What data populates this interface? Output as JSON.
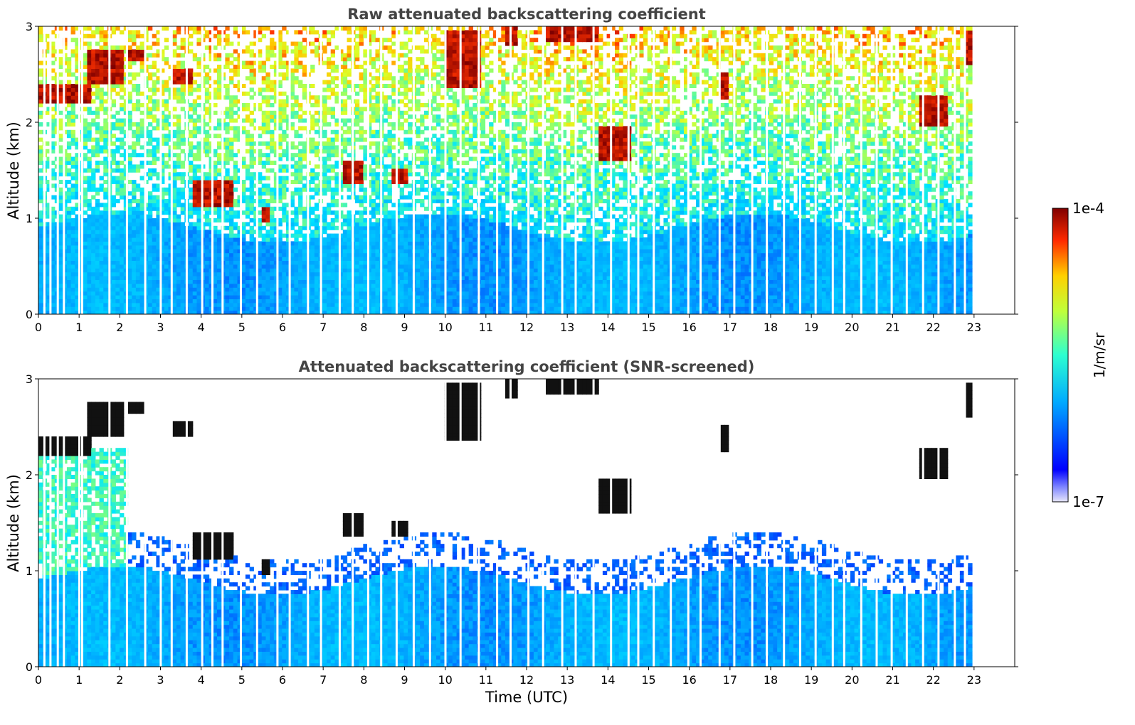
{
  "figure": {
    "xlabel": "Time (UTC)",
    "colorbar": {
      "label": "1/m/sr",
      "max_label": "1e-4",
      "min_label": "1e-7",
      "range": [
        1e-07,
        0.0001
      ],
      "scale": "log",
      "colormap": "jet"
    }
  },
  "chart_data": [
    {
      "type": "heatmap",
      "title": "Raw attenuated backscattering coefficient",
      "xlabel": "",
      "ylabel": "Altitude (km)",
      "xlim": [
        0,
        24
      ],
      "ylim": [
        0,
        3
      ],
      "x_ticks": [
        "0",
        "1",
        "2",
        "3",
        "4",
        "5",
        "6",
        "7",
        "8",
        "9",
        "10",
        "11",
        "12",
        "13",
        "14",
        "15",
        "16",
        "17",
        "18",
        "19",
        "20",
        "21",
        "22",
        "23"
      ],
      "y_ticks": [
        "0",
        "1",
        "2",
        "3"
      ],
      "data_end_hour": 22.95,
      "boundary_layer_top_km": 0.9,
      "cloud_layers": [
        {
          "start": 0.0,
          "end": 1.3,
          "alt_low": 2.2,
          "alt_high": 2.4
        },
        {
          "start": 1.2,
          "end": 2.1,
          "alt_low": 2.4,
          "alt_high": 2.75
        },
        {
          "start": 2.2,
          "end": 2.6,
          "alt_low": 2.65,
          "alt_high": 2.75
        },
        {
          "start": 3.3,
          "end": 3.8,
          "alt_low": 2.4,
          "alt_high": 2.55
        },
        {
          "start": 3.8,
          "end": 4.8,
          "alt_low": 1.1,
          "alt_high": 1.4
        },
        {
          "start": 5.5,
          "end": 5.7,
          "alt_low": 0.95,
          "alt_high": 1.1
        },
        {
          "start": 7.5,
          "end": 8.0,
          "alt_low": 1.35,
          "alt_high": 1.6
        },
        {
          "start": 8.7,
          "end": 9.1,
          "alt_low": 1.35,
          "alt_high": 1.5
        },
        {
          "start": 10.0,
          "end": 10.9,
          "alt_low": 2.35,
          "alt_high": 2.95
        },
        {
          "start": 11.5,
          "end": 11.8,
          "alt_low": 2.8,
          "alt_high": 3.0
        },
        {
          "start": 12.5,
          "end": 13.8,
          "alt_low": 2.85,
          "alt_high": 3.0
        },
        {
          "start": 13.8,
          "end": 14.6,
          "alt_low": 1.6,
          "alt_high": 1.95
        },
        {
          "start": 16.8,
          "end": 17.0,
          "alt_low": 2.25,
          "alt_high": 2.5
        },
        {
          "start": 21.7,
          "end": 22.4,
          "alt_low": 1.95,
          "alt_high": 2.3
        },
        {
          "start": 22.8,
          "end": 23.0,
          "alt_low": 2.6,
          "alt_high": 2.95
        }
      ],
      "snr_screened": false
    },
    {
      "type": "heatmap",
      "title": "Attenuated backscattering coefficient (SNR-screened)",
      "xlabel": "Time (UTC)",
      "ylabel": "Altitude (km)",
      "xlim": [
        0,
        24
      ],
      "ylim": [
        0,
        3
      ],
      "x_ticks": [
        "0",
        "1",
        "2",
        "3",
        "4",
        "5",
        "6",
        "7",
        "8",
        "9",
        "10",
        "11",
        "12",
        "13",
        "14",
        "15",
        "16",
        "17",
        "18",
        "19",
        "20",
        "21",
        "22",
        "23"
      ],
      "y_ticks": [
        "0",
        "1",
        "2",
        "3"
      ],
      "data_end_hour": 22.95,
      "boundary_layer_top_km": 0.9,
      "snr_screened": true
    }
  ]
}
